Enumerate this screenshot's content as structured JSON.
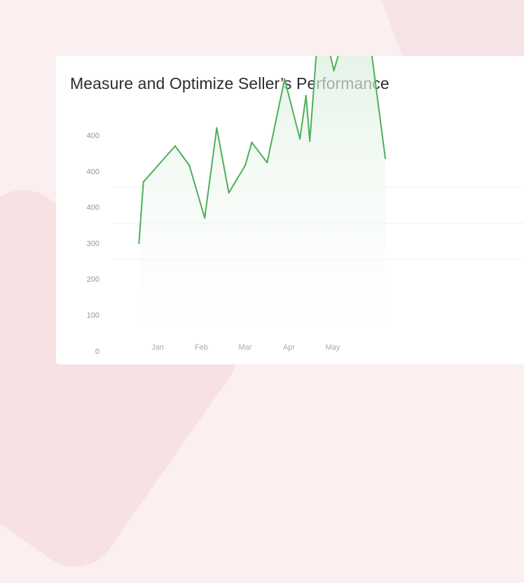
{
  "card": {
    "title": "Measure and Optimize Seller’s Performance"
  },
  "colors": {
    "line": "#4caf5a",
    "area_top": "#cfe9d3",
    "area_bottom": "#ffffff",
    "grid": "#eef0ee",
    "tick": "#8a9a8e"
  },
  "chart_data": {
    "type": "area",
    "title": "",
    "xlabel": "",
    "ylabel": "",
    "y_tick_labels": [
      "400",
      "400",
      "400",
      "300",
      "200",
      "100",
      "0"
    ],
    "x_tick_labels": [
      "Jan",
      "Feb",
      "Mar",
      "Apr",
      "May"
    ],
    "grid": true,
    "series": [
      {
        "values": [
          150,
          235,
          285,
          258,
          185,
          310,
          220,
          258,
          290,
          262,
          378,
          295,
          355,
          292,
          475,
          390,
          432,
          415,
          560,
          268
        ]
      }
    ],
    "x": [
      -0.85,
      -0.65,
      0.8,
      1.45,
      2.15,
      2.7,
      3.25,
      4.0,
      4.3,
      5.0,
      5.8,
      6.5,
      6.78,
      6.95,
      7.4,
      8.05,
      8.45,
      8.8,
      9.15,
      10.4
    ]
  }
}
